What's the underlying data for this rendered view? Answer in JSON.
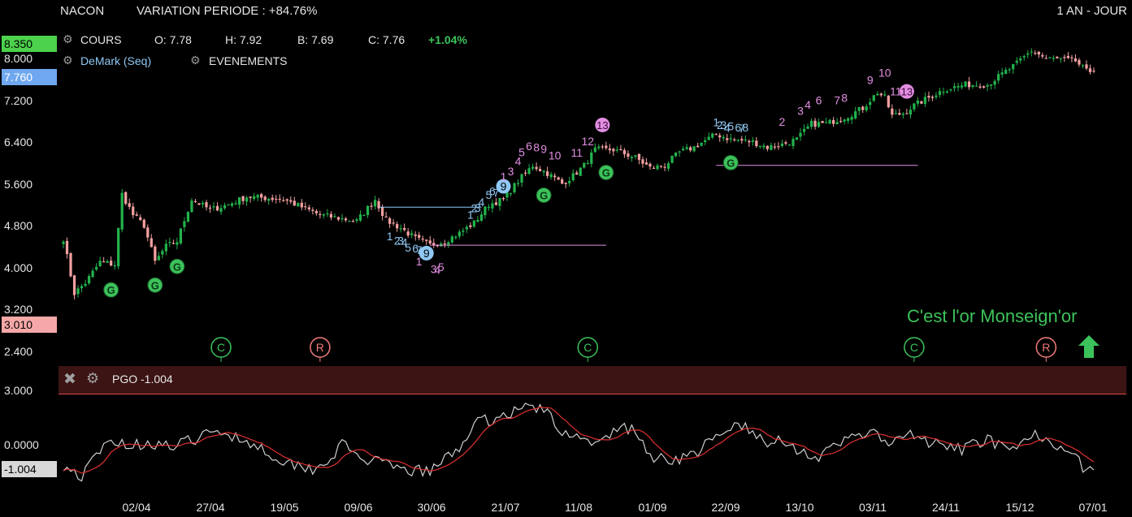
{
  "header": {
    "symbol": "NACON",
    "variation": "VARIATION PERIODE : +84.76%",
    "period": "1 AN - JOUR"
  },
  "legend": {
    "cours_label": "COURS",
    "open": "O: 7.78",
    "high": "H: 7.92",
    "low": "B: 7.69",
    "close": "C: 7.76",
    "change": "+1.04%",
    "demark_label": "DeMark (Seq)",
    "events_label": "EVENEMENTS"
  },
  "price_tags": {
    "high_tag": "8.350",
    "last_tag": "7.760",
    "low_tag": "3.010"
  },
  "colors": {
    "up": "#22b24c",
    "down": "#f4a0a0",
    "demark_setup": "#8fc8f4",
    "demark_count": "#e28ee2",
    "signal_green": "#3cc25a",
    "signal_red": "#f27a7a",
    "pgo_line": "#cfcfcf",
    "pgo_ma": "#e03030",
    "annotation": "#3cc25a"
  },
  "annotation": {
    "text": "C'est l'or Monseign'or"
  },
  "indicator": {
    "label": "PGO -1.004",
    "value_tag": "-1.004",
    "ticks": [
      "3.000",
      "0.0000"
    ]
  },
  "chart_data": {
    "type": "candlestick",
    "y_ticks": [
      "8.000",
      "7.200",
      "6.400",
      "5.600",
      "4.800",
      "4.000",
      "3.200",
      "2.400"
    ],
    "y_tick_values": [
      8.0,
      7.2,
      6.4,
      5.6,
      4.8,
      4.0,
      3.2,
      2.4
    ],
    "ylim": [
      2.25,
      8.45
    ],
    "x_ticks": [
      "02/04",
      "27/04",
      "19/05",
      "09/06",
      "30/06",
      "21/07",
      "11/08",
      "01/09",
      "22/09",
      "13/10",
      "03/11",
      "24/11",
      "15/12",
      "07/01"
    ],
    "n_sessions": 282,
    "close_anchors": [
      [
        0,
        4.55
      ],
      [
        3,
        3.5
      ],
      [
        6,
        3.7
      ],
      [
        10,
        4.1
      ],
      [
        14,
        4.05
      ],
      [
        16,
        5.4
      ],
      [
        19,
        5.0
      ],
      [
        22,
        4.8
      ],
      [
        25,
        4.1
      ],
      [
        28,
        4.4
      ],
      [
        31,
        4.5
      ],
      [
        35,
        5.3
      ],
      [
        40,
        5.1
      ],
      [
        45,
        5.2
      ],
      [
        50,
        5.35
      ],
      [
        60,
        5.3
      ],
      [
        70,
        5.0
      ],
      [
        80,
        4.88
      ],
      [
        85,
        5.3
      ],
      [
        88,
        4.9
      ],
      [
        92,
        4.75
      ],
      [
        96,
        4.55
      ],
      [
        100,
        4.42
      ],
      [
        104,
        4.5
      ],
      [
        108,
        4.65
      ],
      [
        112,
        4.85
      ],
      [
        116,
        5.2
      ],
      [
        120,
        5.3
      ],
      [
        124,
        5.65
      ],
      [
        128,
        5.95
      ],
      [
        132,
        5.8
      ],
      [
        136,
        5.6
      ],
      [
        139,
        5.75
      ],
      [
        142,
        5.95
      ],
      [
        145,
        6.25
      ],
      [
        150,
        6.25
      ],
      [
        156,
        6.1
      ],
      [
        160,
        5.9
      ],
      [
        164,
        5.95
      ],
      [
        168,
        6.2
      ],
      [
        172,
        6.3
      ],
      [
        178,
        6.55
      ],
      [
        182,
        6.45
      ],
      [
        188,
        6.4
      ],
      [
        192,
        6.3
      ],
      [
        196,
        6.35
      ],
      [
        200,
        6.45
      ],
      [
        204,
        6.75
      ],
      [
        208,
        6.75
      ],
      [
        214,
        6.9
      ],
      [
        218,
        7.05
      ],
      [
        222,
        7.35
      ],
      [
        224,
        7.25
      ],
      [
        226,
        6.9
      ],
      [
        229,
        6.95
      ],
      [
        232,
        7.1
      ],
      [
        236,
        7.25
      ],
      [
        240,
        7.4
      ],
      [
        246,
        7.5
      ],
      [
        252,
        7.5
      ],
      [
        256,
        7.7
      ],
      [
        260,
        7.9
      ],
      [
        264,
        8.15
      ],
      [
        268,
        8.0
      ],
      [
        272,
        7.98
      ],
      [
        276,
        7.95
      ],
      [
        279,
        7.75
      ],
      [
        281,
        7.76
      ]
    ],
    "demark": {
      "setup": [
        {
          "i": 89,
          "label": "1"
        },
        {
          "i": 91,
          "label": "2"
        },
        {
          "i": 92,
          "label": "3"
        },
        {
          "i": 93,
          "label": "4"
        },
        {
          "i": 94,
          "label": "5"
        },
        {
          "i": 96,
          "label": "6"
        },
        {
          "i": 97,
          "label": "7"
        },
        {
          "i": 98,
          "label": "8"
        },
        {
          "i": 99,
          "label": "9"
        },
        {
          "i": 111,
          "label": "1"
        },
        {
          "i": 112,
          "label": "2"
        },
        {
          "i": 113,
          "label": "3"
        },
        {
          "i": 114,
          "label": "4"
        },
        {
          "i": 116,
          "label": "5"
        },
        {
          "i": 117,
          "label": "6"
        },
        {
          "i": 118,
          "label": "7"
        },
        {
          "i": 119,
          "label": "8"
        },
        {
          "i": 120,
          "label": "9"
        },
        {
          "i": 178,
          "label": "1"
        },
        {
          "i": 179,
          "label": "2"
        },
        {
          "i": 180,
          "label": "3"
        },
        {
          "i": 181,
          "label": "4"
        },
        {
          "i": 182,
          "label": "5"
        },
        {
          "i": 184,
          "label": "6"
        },
        {
          "i": 185,
          "label": "7"
        },
        {
          "i": 186,
          "label": "8"
        }
      ],
      "countdown": [
        {
          "i": 97,
          "label": "1"
        },
        {
          "i": 101,
          "label": "3"
        },
        {
          "i": 102,
          "label": "4"
        },
        {
          "i": 103,
          "label": "5"
        },
        {
          "i": 120,
          "label": "1"
        },
        {
          "i": 122,
          "label": "3"
        },
        {
          "i": 124,
          "label": "4"
        },
        {
          "i": 125,
          "label": "5"
        },
        {
          "i": 127,
          "label": "6"
        },
        {
          "i": 129,
          "label": "8"
        },
        {
          "i": 131,
          "label": "9"
        },
        {
          "i": 134,
          "label": "10"
        },
        {
          "i": 140,
          "label": "11"
        },
        {
          "i": 143,
          "label": "12"
        },
        {
          "i": 147,
          "label": "13"
        },
        {
          "i": 196,
          "label": "2"
        },
        {
          "i": 201,
          "label": "3"
        },
        {
          "i": 203,
          "label": "4"
        },
        {
          "i": 206,
          "label": "6"
        },
        {
          "i": 211,
          "label": "7"
        },
        {
          "i": 213,
          "label": "8"
        },
        {
          "i": 220,
          "label": "9"
        },
        {
          "i": 224,
          "label": "10"
        },
        {
          "i": 227,
          "label": "11"
        },
        {
          "i": 230,
          "label": "13"
        }
      ]
    },
    "demark_lines": [
      {
        "from": 86,
        "to": 114,
        "y": 5.15,
        "kind": "setup"
      },
      {
        "from": 100,
        "to": 148,
        "y": 4.42,
        "kind": "count"
      },
      {
        "from": 178,
        "to": 233,
        "y": 5.95,
        "kind": "count"
      }
    ],
    "signals_g": [
      13,
      25,
      31,
      131,
      148,
      182
    ],
    "events": [
      {
        "i": 43,
        "label": "C",
        "kind": "C"
      },
      {
        "i": 70,
        "label": "R",
        "kind": "R"
      },
      {
        "i": 143,
        "label": "C",
        "kind": "C"
      },
      {
        "i": 232,
        "label": "C",
        "kind": "C"
      },
      {
        "i": 268,
        "label": "R",
        "kind": "R"
      }
    ],
    "pgo": {
      "ylim": [
        -1.8,
        3.2
      ],
      "anchors": [
        [
          0,
          -0.7
        ],
        [
          5,
          -1.4
        ],
        [
          10,
          0.1
        ],
        [
          14,
          0.8
        ],
        [
          18,
          0.4
        ],
        [
          24,
          0.6
        ],
        [
          30,
          0.3
        ],
        [
          38,
          1.0
        ],
        [
          44,
          1.2
        ],
        [
          52,
          0.5
        ],
        [
          60,
          -0.5
        ],
        [
          68,
          -0.9
        ],
        [
          72,
          -0.5
        ],
        [
          76,
          0.5
        ],
        [
          80,
          -0.2
        ],
        [
          86,
          -0.6
        ],
        [
          92,
          -1.0
        ],
        [
          100,
          -1.1
        ],
        [
          104,
          -0.4
        ],
        [
          108,
          0.3
        ],
        [
          112,
          1.7
        ],
        [
          118,
          2.0
        ],
        [
          124,
          2.5
        ],
        [
          128,
          2.8
        ],
        [
          132,
          2.3
        ],
        [
          136,
          1.0
        ],
        [
          140,
          1.3
        ],
        [
          144,
          0.3
        ],
        [
          148,
          0.8
        ],
        [
          152,
          1.6
        ],
        [
          156,
          1.2
        ],
        [
          160,
          -0.2
        ],
        [
          166,
          -0.4
        ],
        [
          172,
          -0.1
        ],
        [
          176,
          0.6
        ],
        [
          180,
          1.0
        ],
        [
          184,
          1.8
        ],
        [
          188,
          1.1
        ],
        [
          192,
          0.4
        ],
        [
          196,
          0.9
        ],
        [
          200,
          0.2
        ],
        [
          206,
          -0.3
        ],
        [
          212,
          0.5
        ],
        [
          216,
          1.2
        ],
        [
          222,
          1.0
        ],
        [
          226,
          0.4
        ],
        [
          230,
          1.1
        ],
        [
          236,
          0.6
        ],
        [
          240,
          0.3
        ],
        [
          246,
          0.2
        ],
        [
          252,
          0.9
        ],
        [
          258,
          -0.1
        ],
        [
          262,
          0.6
        ],
        [
          266,
          1.1
        ],
        [
          270,
          0.6
        ],
        [
          274,
          0.3
        ],
        [
          278,
          -0.8
        ],
        [
          281,
          -1.004
        ]
      ]
    }
  }
}
